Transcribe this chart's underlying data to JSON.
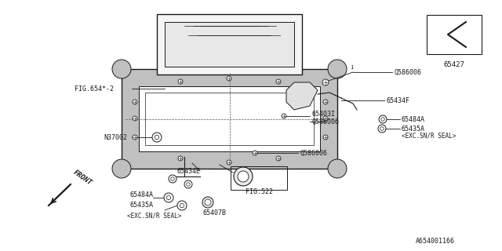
{
  "bg_color": "#ffffff",
  "line_color": "#1a1a1a",
  "gray_fill": "#c0c0c0",
  "part_number_bottom": "A654001166",
  "labels": {
    "fig654": "FIG.654*-2",
    "n37002": "N37002",
    "65434E": "65434E",
    "65484A_bottom": "65484A",
    "65435A_bottom": "65435A",
    "exc_snr_bottom": "<EXC.SN/R SEAL>",
    "65407B": "65407B",
    "fig522": "FIG.522",
    "q586006_top": "Q586006",
    "65434F": "65434F",
    "65403I": "65403I",
    "q586006_mid": "Q586006",
    "65484A_right": "65484A",
    "65435A_right": "65435A",
    "exc_snr_right": "<EXC.SN/R SEAL>",
    "q586006_lower": "Q586006",
    "65427": "65427",
    "front": "FRONT"
  },
  "figsize": [
    6.4,
    3.2
  ],
  "dpi": 100
}
